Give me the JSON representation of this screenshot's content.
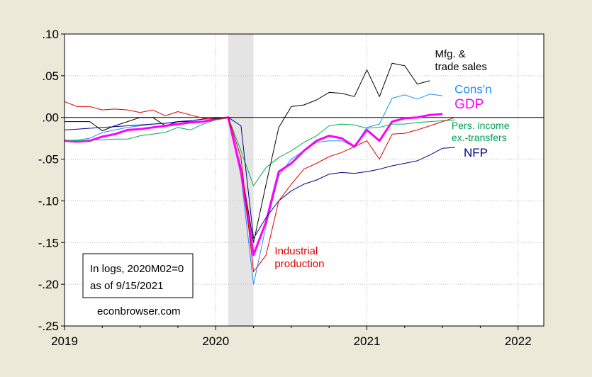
{
  "chart_data": {
    "type": "line",
    "title": "",
    "xlabel": "",
    "ylabel": "",
    "x_ticks": [
      "2019",
      "2020",
      "2021",
      "2022"
    ],
    "y_ticks": [
      ".10",
      ".05",
      ".00",
      "-.05",
      "-.10",
      "-.15",
      "-.20",
      "-.25"
    ],
    "ylim": [
      -0.25,
      0.1
    ],
    "xlim": [
      2019.0,
      2022.17
    ],
    "recession_shade": [
      2020.083,
      2020.25
    ],
    "note_lines": [
      "In logs, 2020M02=0",
      "as of 9/15/2021"
    ],
    "source": "econbrowser.com",
    "series": [
      {
        "name": "Mfg. & trade sales",
        "label_lines": [
          "Mfg. &",
          "trade sales"
        ],
        "color": "#000000",
        "width": 1,
        "x": [
          2019.0,
          2019.083,
          2019.167,
          2019.25,
          2019.333,
          2019.417,
          2019.5,
          2019.583,
          2019.667,
          2019.75,
          2019.833,
          2019.917,
          2020.0,
          2020.083,
          2020.167,
          2020.25,
          2020.333,
          2020.417,
          2020.5,
          2020.583,
          2020.667,
          2020.75,
          2020.833,
          2020.917,
          2021.0,
          2021.083,
          2021.167,
          2021.25,
          2021.333,
          2021.417
        ],
        "values": [
          -0.005,
          -0.005,
          -0.005,
          -0.016,
          -0.01,
          -0.005,
          0.0,
          0.0,
          -0.01,
          -0.005,
          -0.005,
          -0.005,
          -0.002,
          0.0,
          -0.06,
          -0.15,
          -0.08,
          -0.012,
          0.013,
          0.015,
          0.021,
          0.03,
          0.029,
          0.025,
          0.057,
          0.025,
          0.065,
          0.062,
          0.04,
          0.044
        ]
      },
      {
        "name": "Cons'n",
        "label_lines": [
          "Cons'n"
        ],
        "color": "#1e90ff",
        "width": 1,
        "x": [
          2019.0,
          2019.083,
          2019.167,
          2019.25,
          2019.333,
          2019.417,
          2019.5,
          2019.583,
          2019.667,
          2019.75,
          2019.833,
          2019.917,
          2020.0,
          2020.083,
          2020.167,
          2020.25,
          2020.333,
          2020.417,
          2020.5,
          2020.583,
          2020.667,
          2020.75,
          2020.833,
          2020.917,
          2021.0,
          2021.083,
          2021.167,
          2021.25,
          2021.333,
          2021.417,
          2021.5
        ],
        "values": [
          -0.028,
          -0.027,
          -0.025,
          -0.018,
          -0.015,
          -0.012,
          -0.01,
          -0.008,
          -0.007,
          -0.005,
          -0.004,
          -0.002,
          -0.001,
          0.0,
          -0.07,
          -0.2,
          -0.13,
          -0.07,
          -0.05,
          -0.04,
          -0.03,
          -0.028,
          -0.028,
          -0.035,
          -0.012,
          -0.008,
          0.023,
          0.027,
          0.022,
          0.028,
          0.026
        ]
      },
      {
        "name": "GDP",
        "label_lines": [
          "GDP"
        ],
        "color": "#ff00ff",
        "width": 3,
        "x": [
          2019.0,
          2019.083,
          2019.167,
          2019.25,
          2019.333,
          2019.417,
          2019.5,
          2019.583,
          2019.667,
          2019.75,
          2019.833,
          2019.917,
          2020.0,
          2020.083,
          2020.167,
          2020.25,
          2020.333,
          2020.417,
          2020.5,
          2020.583,
          2020.667,
          2020.75,
          2020.833,
          2020.917,
          2021.0,
          2021.083,
          2021.167,
          2021.25,
          2021.333,
          2021.417,
          2021.5
        ],
        "values": [
          -0.028,
          -0.029,
          -0.028,
          -0.023,
          -0.02,
          -0.015,
          -0.014,
          -0.012,
          -0.01,
          -0.008,
          -0.006,
          -0.005,
          -0.002,
          0.0,
          -0.065,
          -0.165,
          -0.125,
          -0.065,
          -0.055,
          -0.04,
          -0.028,
          -0.022,
          -0.025,
          -0.035,
          -0.015,
          -0.028,
          -0.005,
          -0.001,
          0.0,
          0.003,
          0.004
        ]
      },
      {
        "name": "Pers. income ex.-transfers",
        "label_lines": [
          "Pers. income",
          "ex.-transfers"
        ],
        "color": "#00b050",
        "width": 1,
        "x": [
          2019.0,
          2019.083,
          2019.167,
          2019.25,
          2019.333,
          2019.417,
          2019.5,
          2019.583,
          2019.667,
          2019.75,
          2019.833,
          2019.917,
          2020.0,
          2020.083,
          2020.167,
          2020.25,
          2020.333,
          2020.417,
          2020.5,
          2020.583,
          2020.667,
          2020.75,
          2020.833,
          2020.917,
          2021.0,
          2021.083,
          2021.167,
          2021.25,
          2021.333,
          2021.417,
          2021.5,
          2021.583
        ],
        "values": [
          -0.027,
          -0.028,
          -0.027,
          -0.027,
          -0.026,
          -0.026,
          -0.022,
          -0.02,
          -0.018,
          -0.012,
          -0.015,
          -0.008,
          -0.003,
          0.0,
          -0.04,
          -0.082,
          -0.06,
          -0.048,
          -0.04,
          -0.03,
          -0.022,
          -0.01,
          -0.008,
          -0.009,
          -0.013,
          -0.012,
          -0.008,
          -0.008,
          -0.006,
          -0.005,
          -0.004,
          -0.003
        ]
      },
      {
        "name": "NFP",
        "label_lines": [
          "NFP"
        ],
        "color": "#00008b",
        "width": 1,
        "x": [
          2019.0,
          2019.083,
          2019.167,
          2019.25,
          2019.333,
          2019.417,
          2019.5,
          2019.583,
          2019.667,
          2019.75,
          2019.833,
          2019.917,
          2020.0,
          2020.083,
          2020.167,
          2020.25,
          2020.333,
          2020.417,
          2020.5,
          2020.583,
          2020.667,
          2020.75,
          2020.833,
          2020.917,
          2021.0,
          2021.083,
          2021.167,
          2021.25,
          2021.333,
          2021.417,
          2021.5,
          2021.583
        ],
        "values": [
          -0.015,
          -0.014,
          -0.013,
          -0.012,
          -0.011,
          -0.01,
          -0.009,
          -0.008,
          -0.007,
          -0.005,
          -0.004,
          -0.002,
          -0.001,
          0.0,
          -0.01,
          -0.145,
          -0.12,
          -0.1,
          -0.088,
          -0.08,
          -0.075,
          -0.068,
          -0.066,
          -0.067,
          -0.065,
          -0.062,
          -0.058,
          -0.055,
          -0.052,
          -0.045,
          -0.037,
          -0.036
        ]
      },
      {
        "name": "Industrial production",
        "label_lines": [
          "Industrial",
          "production"
        ],
        "color": "#e00000",
        "width": 1,
        "x": [
          2019.0,
          2019.083,
          2019.167,
          2019.25,
          2019.333,
          2019.417,
          2019.5,
          2019.583,
          2019.667,
          2019.75,
          2019.833,
          2019.917,
          2020.0,
          2020.083,
          2020.167,
          2020.25,
          2020.333,
          2020.417,
          2020.5,
          2020.583,
          2020.667,
          2020.75,
          2020.833,
          2020.917,
          2021.0,
          2021.083,
          2021.167,
          2021.25,
          2021.333,
          2021.417,
          2021.5,
          2021.583
        ],
        "values": [
          0.019,
          0.013,
          0.013,
          0.009,
          0.01,
          0.009,
          0.006,
          0.009,
          0.002,
          0.007,
          0.003,
          -0.001,
          -0.002,
          0.0,
          -0.048,
          -0.185,
          -0.165,
          -0.1,
          -0.08,
          -0.062,
          -0.055,
          -0.047,
          -0.042,
          -0.035,
          -0.028,
          -0.05,
          -0.02,
          -0.019,
          -0.015,
          -0.01,
          -0.005,
          0.0
        ]
      }
    ]
  }
}
